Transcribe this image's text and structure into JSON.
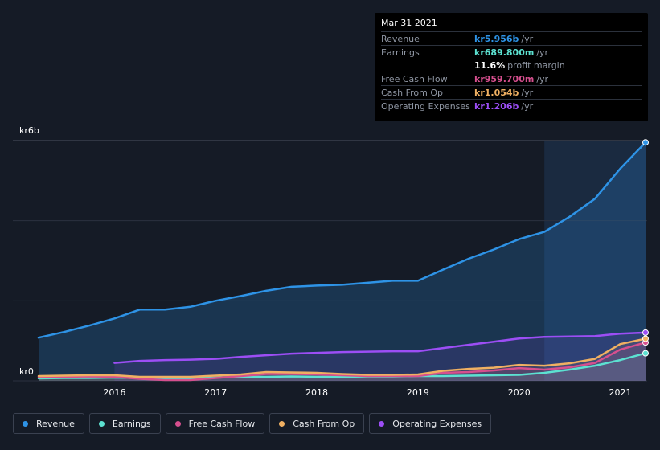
{
  "tooltip": {
    "date": "Mar 31 2021",
    "rows": [
      {
        "label": "Revenue",
        "value": "kr5.956b",
        "unit": "/yr",
        "color": "#2e93e6"
      },
      {
        "label": "Earnings",
        "value": "kr689.800m",
        "unit": "/yr",
        "color": "#5ce1d1"
      },
      {
        "margin_value": "11.6%",
        "margin_label": "profit margin"
      },
      {
        "label": "Free Cash Flow",
        "value": "kr959.700m",
        "unit": "/yr",
        "color": "#d64f8e"
      },
      {
        "label": "Cash From Op",
        "value": "kr1.054b",
        "unit": "/yr",
        "color": "#f0b062"
      },
      {
        "label": "Operating Expenses",
        "value": "kr1.206b",
        "unit": "/yr",
        "color": "#9c4ef5"
      }
    ]
  },
  "legend": [
    {
      "label": "Revenue",
      "color": "#2e93e6"
    },
    {
      "label": "Earnings",
      "color": "#5ce1d1"
    },
    {
      "label": "Free Cash Flow",
      "color": "#d64f8e"
    },
    {
      "label": "Cash From Op",
      "color": "#f0b062"
    },
    {
      "label": "Operating Expenses",
      "color": "#9c4ef5"
    }
  ],
  "chart_data": {
    "type": "line",
    "title": "",
    "xlabel": "",
    "ylabel": "",
    "unit": "SEK (kr)",
    "ylim": [
      0,
      6
    ],
    "y_tick_labels": [
      {
        "value": 6,
        "label": "kr6b"
      },
      {
        "value": 0,
        "label": "kr0"
      }
    ],
    "xlim": [
      2015.25,
      2021.25
    ],
    "x_ticks": [
      2016,
      2017,
      2018,
      2019,
      2020,
      2021
    ],
    "highlight_range": [
      2020.25,
      2021.25
    ],
    "series": [
      {
        "name": "Revenue",
        "color": "#2e93e6",
        "filled": true,
        "x": [
          2015.25,
          2015.5,
          2015.75,
          2016.0,
          2016.25,
          2016.5,
          2016.75,
          2017.0,
          2017.25,
          2017.5,
          2017.75,
          2018.0,
          2018.25,
          2018.5,
          2018.75,
          2019.0,
          2019.25,
          2019.5,
          2019.75,
          2020.0,
          2020.25,
          2020.5,
          2020.75,
          2021.0,
          2021.25
        ],
        "y": [
          1.08,
          1.22,
          1.38,
          1.56,
          1.78,
          1.78,
          1.85,
          2.0,
          2.12,
          2.25,
          2.35,
          2.38,
          2.4,
          2.45,
          2.5,
          2.5,
          2.78,
          3.05,
          3.28,
          3.54,
          3.72,
          4.1,
          4.55,
          5.3,
          5.956
        ]
      },
      {
        "name": "Earnings",
        "color": "#5ce1d1",
        "x": [
          2015.25,
          2015.5,
          2015.75,
          2016.0,
          2016.25,
          2016.5,
          2016.75,
          2017.0,
          2017.25,
          2017.5,
          2017.75,
          2018.0,
          2018.25,
          2018.5,
          2018.75,
          2019.0,
          2019.25,
          2019.5,
          2019.75,
          2020.0,
          2020.25,
          2020.5,
          2020.75,
          2021.0,
          2021.25
        ],
        "y": [
          0.06,
          0.07,
          0.07,
          0.08,
          0.07,
          0.06,
          0.06,
          0.08,
          0.1,
          0.1,
          0.11,
          0.1,
          0.1,
          0.11,
          0.11,
          0.12,
          0.12,
          0.13,
          0.14,
          0.15,
          0.2,
          0.28,
          0.38,
          0.52,
          0.6898
        ]
      },
      {
        "name": "Free Cash Flow",
        "color": "#d64f8e",
        "x": [
          2015.25,
          2015.5,
          2015.75,
          2016.0,
          2016.25,
          2016.5,
          2016.75,
          2017.0,
          2017.25,
          2017.5,
          2017.75,
          2018.0,
          2018.25,
          2018.5,
          2018.75,
          2019.0,
          2019.25,
          2019.5,
          2019.75,
          2020.0,
          2020.25,
          2020.5,
          2020.75,
          2021.0,
          2021.25
        ],
        "y": [
          0.1,
          0.1,
          0.11,
          0.1,
          0.05,
          0.02,
          0.02,
          0.07,
          0.12,
          0.17,
          0.17,
          0.16,
          0.14,
          0.12,
          0.12,
          0.12,
          0.2,
          0.22,
          0.26,
          0.32,
          0.28,
          0.34,
          0.45,
          0.78,
          0.9597
        ]
      },
      {
        "name": "Cash From Op",
        "color": "#f0b062",
        "x": [
          2015.25,
          2015.5,
          2015.75,
          2016.0,
          2016.25,
          2016.5,
          2016.75,
          2017.0,
          2017.25,
          2017.5,
          2017.75,
          2018.0,
          2018.25,
          2018.5,
          2018.75,
          2019.0,
          2019.25,
          2019.5,
          2019.75,
          2020.0,
          2020.25,
          2020.5,
          2020.75,
          2021.0,
          2021.25
        ],
        "y": [
          0.12,
          0.13,
          0.14,
          0.14,
          0.1,
          0.1,
          0.1,
          0.13,
          0.16,
          0.22,
          0.21,
          0.2,
          0.17,
          0.15,
          0.15,
          0.16,
          0.25,
          0.3,
          0.33,
          0.4,
          0.38,
          0.44,
          0.55,
          0.92,
          1.054
        ]
      },
      {
        "name": "Operating Expenses",
        "color": "#9c4ef5",
        "x": [
          2016.0,
          2016.25,
          2016.5,
          2016.75,
          2017.0,
          2017.25,
          2017.5,
          2017.75,
          2018.0,
          2018.25,
          2018.5,
          2018.75,
          2019.0,
          2019.25,
          2019.5,
          2019.75,
          2020.0,
          2020.25,
          2020.5,
          2020.75,
          2021.0,
          2021.25
        ],
        "y": [
          0.45,
          0.5,
          0.52,
          0.53,
          0.55,
          0.6,
          0.64,
          0.68,
          0.7,
          0.72,
          0.73,
          0.74,
          0.74,
          0.82,
          0.9,
          0.98,
          1.06,
          1.1,
          1.11,
          1.12,
          1.18,
          1.206
        ]
      }
    ]
  }
}
